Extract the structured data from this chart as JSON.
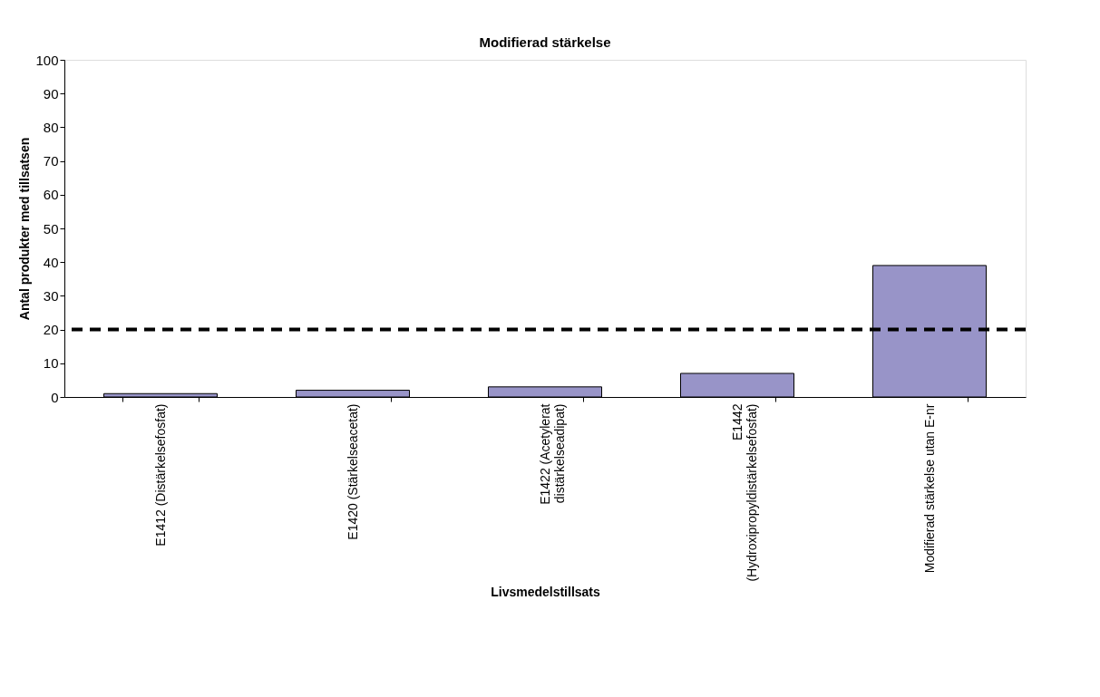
{
  "chart_data": {
    "type": "bar",
    "title": "Modifierad stärkelse",
    "xlabel": "Livsmedelstillsats",
    "ylabel": "Antal produkter med tillsatsen",
    "categories": [
      "E1412 (Distärkelsefosfat)",
      "E1420 (Stärkelseacetat)",
      "E1422 (Acetylerat distärkelseadipat)",
      "E1442 (Hydroxipropyldistärkelsefosfat)",
      "Modifierad stärkelse utan E-nr"
    ],
    "values": [
      1,
      2,
      3,
      7,
      39
    ],
    "color": "#9894c8",
    "ylim": [
      0,
      100
    ],
    "yticks": [
      0,
      10,
      20,
      30,
      40,
      50,
      60,
      70,
      80,
      90,
      100
    ],
    "grid": false,
    "legend": false,
    "ref_lines": [
      {
        "axis": "y",
        "value": 20,
        "label": null,
        "color": "#000000",
        "line_style": "dashed"
      }
    ]
  }
}
